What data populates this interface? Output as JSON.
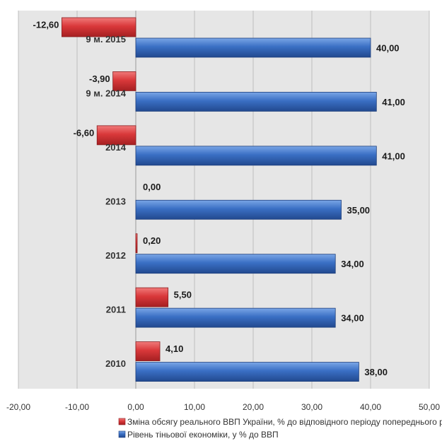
{
  "chart_data": {
    "type": "bar",
    "orientation": "horizontal",
    "categories": [
      "9 м. 2015",
      "9 м. 2014",
      "2014",
      "2013",
      "2012",
      "2011",
      "2010"
    ],
    "series": [
      {
        "name": "Зміна обсягу реального ВВП України, % до відповідного періоду попереднього року",
        "values": [
          -12.6,
          -3.9,
          -6.6,
          0.0,
          0.2,
          5.5,
          4.1
        ],
        "labels": [
          "-12,60",
          "-3,90",
          "-6,60",
          "0,00",
          "0,20",
          "5,50",
          "4,10"
        ],
        "color": "#d9383a"
      },
      {
        "name": "Рівень тіньової економіки, у % до ВВП",
        "values": [
          40.0,
          41.0,
          41.0,
          35.0,
          34.0,
          34.0,
          38.0
        ],
        "labels": [
          "40,00",
          "41,00",
          "41,00",
          "35,00",
          "34,00",
          "34,00",
          "38,00"
        ],
        "color": "#3a6fc4"
      }
    ],
    "xlim": [
      -20,
      50
    ],
    "xticks": [
      -20,
      -10,
      0,
      10,
      20,
      30,
      40,
      50
    ],
    "xtick_labels": [
      "-20,00",
      "-10,00",
      "0,00",
      "10,00",
      "20,00",
      "30,00",
      "40,00",
      "50,00"
    ],
    "grid": true,
    "legend_position": "bottom",
    "plot_background": "#e6e6e6"
  }
}
